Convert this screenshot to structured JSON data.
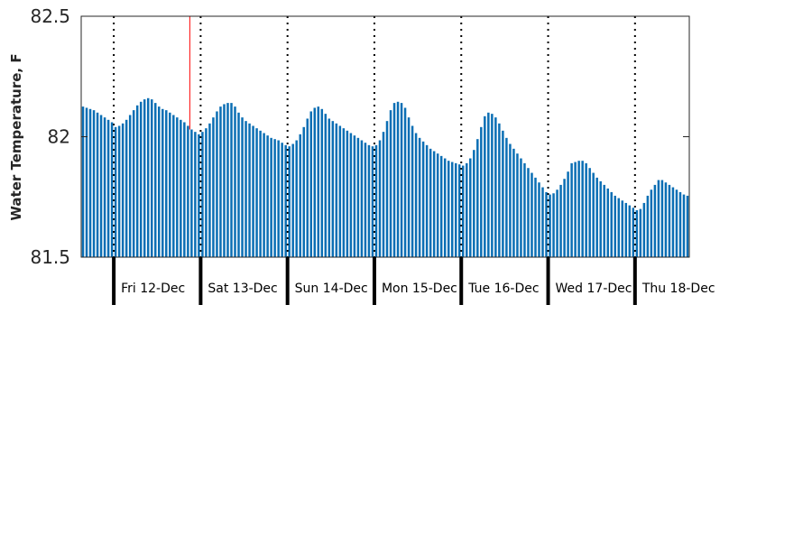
{
  "chart_data": {
    "type": "bar",
    "title": "",
    "xlabel": "",
    "ylabel": "Water Temperature, F",
    "ylim": [
      81.5,
      82.5
    ],
    "yticks": [
      "81.5",
      "82",
      "82.5"
    ],
    "bar_color": "#0a6eb4",
    "marker_color": "#ff0000",
    "grid": false,
    "days": [
      "Fri 12-Dec",
      "Sat 13-Dec",
      "Sun 14-Dec",
      "Mon 15-Dec",
      "Tue 16-Dec",
      "Wed 17-Dec",
      "Thu 18-Dec"
    ],
    "bars_per_day": 24,
    "bars_before_first_day": 9,
    "current_time_bar_index": 30,
    "values": [
      82.125,
      82.12,
      82.115,
      82.11,
      82.1,
      82.09,
      82.08,
      82.07,
      82.06,
      82.04,
      82.045,
      82.055,
      82.07,
      82.09,
      82.11,
      82.13,
      82.145,
      82.155,
      82.16,
      82.155,
      82.14,
      82.125,
      82.115,
      82.11,
      82.1,
      82.09,
      82.08,
      82.07,
      82.06,
      82.045,
      82.03,
      82.02,
      82.01,
      82.02,
      82.035,
      82.055,
      82.08,
      82.105,
      82.125,
      82.135,
      82.14,
      82.14,
      82.125,
      82.1,
      82.08,
      82.065,
      82.055,
      82.045,
      82.035,
      82.025,
      82.015,
      82.005,
      81.995,
      81.99,
      81.985,
      81.975,
      81.965,
      81.96,
      81.97,
      81.985,
      82.01,
      82.04,
      82.075,
      82.105,
      82.12,
      82.125,
      82.115,
      82.095,
      82.075,
      82.065,
      82.055,
      82.045,
      82.035,
      82.025,
      82.015,
      82.005,
      81.995,
      81.985,
      81.975,
      81.965,
      81.96,
      81.965,
      81.985,
      82.02,
      82.065,
      82.11,
      82.14,
      82.145,
      82.14,
      82.12,
      82.08,
      82.045,
      82.015,
      81.995,
      81.98,
      81.965,
      81.95,
      81.94,
      81.93,
      81.92,
      81.91,
      81.9,
      81.895,
      81.89,
      81.885,
      81.88,
      81.89,
      81.91,
      81.945,
      81.99,
      82.04,
      82.085,
      82.1,
      82.095,
      82.08,
      82.055,
      82.025,
      81.995,
      81.97,
      81.95,
      81.93,
      81.91,
      81.89,
      81.87,
      81.85,
      81.83,
      81.81,
      81.79,
      81.77,
      81.76,
      81.765,
      81.78,
      81.8,
      81.825,
      81.855,
      81.89,
      81.895,
      81.9,
      81.9,
      81.89,
      81.87,
      81.85,
      81.83,
      81.815,
      81.8,
      81.785,
      81.77,
      81.755,
      81.745,
      81.735,
      81.725,
      81.715,
      81.705,
      81.695,
      81.7,
      81.725,
      81.755,
      81.78,
      81.8,
      81.82,
      81.82,
      81.81,
      81.8,
      81.79,
      81.78,
      81.77,
      81.76,
      81.755
    ]
  }
}
